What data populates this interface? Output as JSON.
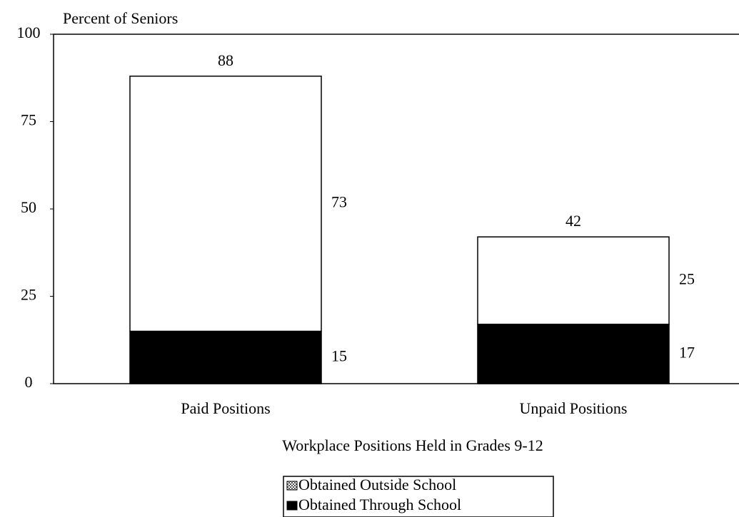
{
  "chart_data": {
    "type": "stacked_bar",
    "ylabel": "Percent of Seniors",
    "xlabel": "Workplace Positions Held in Grades 9-12",
    "categories": [
      "Paid Positions",
      "Unpaid Positions"
    ],
    "series": [
      {
        "name": "Obtained Through School",
        "color": "#000000",
        "values": [
          15,
          17
        ]
      },
      {
        "name": "Obtained Outside School",
        "color": "#ffffff",
        "values": [
          73,
          25
        ]
      }
    ],
    "totals": [
      88,
      42
    ],
    "ylim": [
      0,
      100
    ],
    "yticks": [
      0,
      25,
      50,
      75,
      100
    ],
    "legend": "bottom"
  }
}
